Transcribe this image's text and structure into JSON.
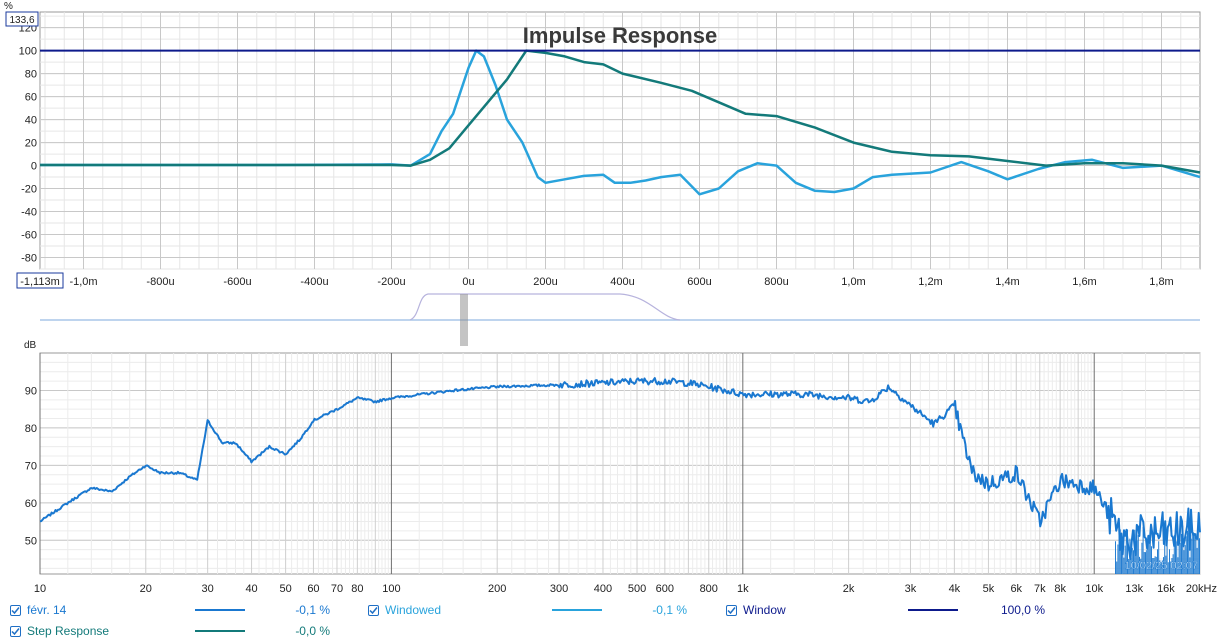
{
  "chart_data": [
    {
      "type": "line",
      "title": "Impulse Response",
      "y_unit_label": "%",
      "ylim": [
        -90,
        133.6
      ],
      "xlim": [
        -1.113,
        1.9
      ],
      "x_unit": "ms",
      "y_max_label": "133,6",
      "x_min_label": "-1,113m",
      "y_ticks": [
        "120",
        "100",
        "80",
        "60",
        "40",
        "20",
        "0",
        "-20",
        "-40",
        "-60",
        "-80"
      ],
      "x_ticks": [
        "-1,0m",
        "-800u",
        "-600u",
        "-400u",
        "-200u",
        "0u",
        "200u",
        "400u",
        "600u",
        "800u",
        "1,0m",
        "1,2m",
        "1,4m",
        "1,6m",
        "1,8m"
      ],
      "grid": true,
      "series": [
        {
          "name": "Windowed",
          "color": "#29a3dc",
          "points": [
            [
              -1.113,
              0.5
            ],
            [
              -0.5,
              0.5
            ],
            [
              -0.2,
              1
            ],
            [
              -0.15,
              0
            ],
            [
              -0.1,
              10
            ],
            [
              -0.07,
              30
            ],
            [
              -0.04,
              45
            ],
            [
              -0.02,
              65
            ],
            [
              0,
              85
            ],
            [
              0.02,
              100
            ],
            [
              0.04,
              95
            ],
            [
              0.07,
              70
            ],
            [
              0.1,
              40
            ],
            [
              0.14,
              20
            ],
            [
              0.18,
              -10
            ],
            [
              0.2,
              -15
            ],
            [
              0.25,
              -12
            ],
            [
              0.3,
              -9
            ],
            [
              0.35,
              -8
            ],
            [
              0.38,
              -15
            ],
            [
              0.42,
              -15
            ],
            [
              0.46,
              -13
            ],
            [
              0.5,
              -10
            ],
            [
              0.55,
              -8
            ],
            [
              0.6,
              -25
            ],
            [
              0.65,
              -20
            ],
            [
              0.7,
              -5
            ],
            [
              0.75,
              2
            ],
            [
              0.8,
              0
            ],
            [
              0.85,
              -15
            ],
            [
              0.9,
              -22
            ],
            [
              0.95,
              -23
            ],
            [
              1.0,
              -20
            ],
            [
              1.05,
              -10
            ],
            [
              1.1,
              -8
            ],
            [
              1.2,
              -6
            ],
            [
              1.28,
              3
            ],
            [
              1.35,
              -5
            ],
            [
              1.4,
              -12
            ],
            [
              1.48,
              -3
            ],
            [
              1.55,
              3
            ],
            [
              1.62,
              5
            ],
            [
              1.7,
              -2
            ],
            [
              1.8,
              0
            ],
            [
              1.9,
              -10
            ]
          ]
        },
        {
          "name": "Step Response",
          "color": "#137a7a",
          "points": [
            [
              -1.113,
              0.5
            ],
            [
              -0.2,
              0.5
            ],
            [
              -0.15,
              0
            ],
            [
              -0.1,
              5
            ],
            [
              -0.05,
              15
            ],
            [
              0,
              35
            ],
            [
              0.05,
              55
            ],
            [
              0.1,
              75
            ],
            [
              0.15,
              100
            ],
            [
              0.2,
              98
            ],
            [
              0.25,
              95
            ],
            [
              0.3,
              90
            ],
            [
              0.35,
              88
            ],
            [
              0.4,
              80
            ],
            [
              0.5,
              72
            ],
            [
              0.58,
              65
            ],
            [
              0.65,
              55
            ],
            [
              0.72,
              45
            ],
            [
              0.8,
              43
            ],
            [
              0.9,
              33
            ],
            [
              1.0,
              20
            ],
            [
              1.1,
              12
            ],
            [
              1.2,
              9
            ],
            [
              1.3,
              8
            ],
            [
              1.4,
              4
            ],
            [
              1.5,
              0
            ],
            [
              1.6,
              2
            ],
            [
              1.7,
              2
            ],
            [
              1.8,
              0
            ],
            [
              1.9,
              -6
            ]
          ]
        },
        {
          "name": "Window",
          "color": "#0d1a8c",
          "points": [
            [
              -1.113,
              100
            ],
            [
              1.9,
              100
            ]
          ]
        }
      ]
    },
    {
      "type": "line",
      "y_unit_label": "dB",
      "x_scale": "log",
      "xlim": [
        10,
        20000
      ],
      "ylim": [
        41,
        100
      ],
      "y_ticks": [
        "90",
        "80",
        "70",
        "60",
        "50"
      ],
      "x_ticks": [
        "10",
        "20",
        "30",
        "40",
        "50",
        "60",
        "70",
        "80",
        "100",
        "200",
        "300",
        "400",
        "500",
        "600",
        "800",
        "1k",
        "2k",
        "3k",
        "4k",
        "5k",
        "6k",
        "7k",
        "8k",
        "10k",
        "13k",
        "16k",
        "20kHz"
      ],
      "grid": true,
      "series": [
        {
          "name": "févr. 14",
          "color": "#1a78d0",
          "points": [
            [
              10,
              55
            ],
            [
              12,
              60
            ],
            [
              14,
              64
            ],
            [
              16,
              63
            ],
            [
              18,
              67
            ],
            [
              20,
              70
            ],
            [
              22,
              68
            ],
            [
              25,
              68
            ],
            [
              28,
              66
            ],
            [
              30,
              82
            ],
            [
              33,
              76
            ],
            [
              36,
              76
            ],
            [
              40,
              71
            ],
            [
              45,
              75
            ],
            [
              50,
              73
            ],
            [
              55,
              77
            ],
            [
              60,
              82
            ],
            [
              70,
              85
            ],
            [
              80,
              88
            ],
            [
              90,
              87
            ],
            [
              100,
              88
            ],
            [
              150,
              90
            ],
            [
              200,
              91
            ],
            [
              300,
              91.5
            ],
            [
              400,
              92
            ],
            [
              500,
              92.5
            ],
            [
              600,
              92.5
            ],
            [
              700,
              92
            ],
            [
              800,
              91
            ],
            [
              1000,
              89
            ],
            [
              1500,
              89
            ],
            [
              2000,
              88
            ],
            [
              2300,
              87
            ],
            [
              2600,
              91
            ],
            [
              3000,
              86
            ],
            [
              3500,
              81
            ],
            [
              4000,
              86
            ],
            [
              4200,
              78
            ],
            [
              4500,
              68
            ],
            [
              5000,
              65
            ],
            [
              6000,
              68
            ],
            [
              7000,
              55
            ],
            [
              8000,
              66
            ],
            [
              10000,
              64
            ],
            [
              11000,
              57
            ],
            [
              12000,
              50
            ],
            [
              14000,
              51
            ],
            [
              17000,
              52
            ],
            [
              20000,
              53
            ]
          ]
        }
      ]
    }
  ],
  "timestamp": "10/02/25 02:07",
  "legend": [
    {
      "label": "févr. 14",
      "value": "-0,1 %",
      "color": "#1a78d0",
      "checked": true
    },
    {
      "label": "Windowed",
      "value": "-0,1 %",
      "color": "#29a3dc",
      "checked": true
    },
    {
      "label": "Window",
      "value": "100,0 %",
      "color": "#0d1a8c",
      "checked": true
    },
    {
      "label": "Step Response",
      "value": "-0,0 %",
      "color": "#137a7a",
      "checked": true
    }
  ]
}
